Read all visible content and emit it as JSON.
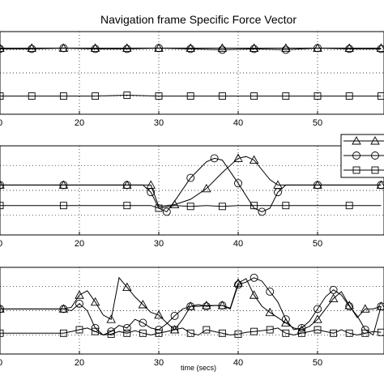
{
  "chart_data": {
    "type": "line",
    "title": "Navigation frame Specific Force Vector",
    "xlabel": "time (secs)",
    "xlim": [
      10,
      58
    ],
    "xticks": [
      20,
      30,
      40,
      50
    ],
    "xtick_labels": [
      "20",
      "30",
      "40",
      "50"
    ],
    "first_tick_fragment": "0",
    "grid": true,
    "legend": {
      "location": "upper-right of second panel",
      "markers": [
        "triangle",
        "circle",
        "square"
      ]
    },
    "panels": [
      {
        "ylim": [
          0,
          1
        ],
        "series": [
          {
            "marker": "triangle",
            "x": [
              10,
              14,
              18,
              22,
              26,
              30,
              34,
              38,
              42,
              46,
              50,
              54,
              58
            ],
            "y": [
              0.8,
              0.8,
              0.8,
              0.8,
              0.8,
              0.8,
              0.8,
              0.8,
              0.8,
              0.8,
              0.8,
              0.8,
              0.8
            ]
          },
          {
            "marker": "circle",
            "x": [
              10,
              14,
              18,
              22,
              26,
              30,
              34,
              38,
              42,
              46,
              50,
              54,
              58
            ],
            "y": [
              0.79,
              0.79,
              0.8,
              0.79,
              0.79,
              0.8,
              0.79,
              0.78,
              0.79,
              0.78,
              0.8,
              0.79,
              0.79
            ]
          },
          {
            "marker": "square",
            "x": [
              10,
              14,
              18,
              22,
              26,
              30,
              34,
              38,
              42,
              46,
              50,
              54,
              58
            ],
            "y": [
              0.22,
              0.22,
              0.22,
              0.22,
              0.23,
              0.22,
              0.22,
              0.22,
              0.22,
              0.22,
              0.22,
              0.22,
              0.22
            ]
          }
        ]
      },
      {
        "ylim": [
          0,
          1
        ],
        "series": [
          {
            "marker": "triangle",
            "x": [
              10,
              14,
              18,
              22,
              26,
              28,
              29,
              30,
              32,
              34,
              36,
              38,
              40,
              41,
              42,
              44,
              45,
              46,
              50,
              54,
              58
            ],
            "y": [
              0.56,
              0.56,
              0.56,
              0.56,
              0.56,
              0.56,
              0.56,
              0.32,
              0.34,
              0.4,
              0.52,
              0.7,
              0.86,
              0.88,
              0.84,
              0.62,
              0.56,
              0.56,
              0.56,
              0.56,
              0.56
            ]
          },
          {
            "marker": "circle",
            "x": [
              10,
              14,
              18,
              22,
              26,
              28,
              29,
              30,
              31,
              32,
              34,
              36,
              37,
              38,
              40,
              42,
              43,
              44,
              45,
              46,
              50,
              54,
              58
            ],
            "y": [
              0.56,
              0.56,
              0.56,
              0.56,
              0.56,
              0.56,
              0.48,
              0.3,
              0.26,
              0.38,
              0.64,
              0.82,
              0.86,
              0.84,
              0.58,
              0.3,
              0.26,
              0.3,
              0.48,
              0.56,
              0.56,
              0.56,
              0.56
            ]
          },
          {
            "marker": "square",
            "x": [
              10,
              14,
              18,
              22,
              26,
              29,
              30,
              32,
              34,
              36,
              38,
              40,
              42,
              44,
              46,
              50,
              54,
              58
            ],
            "y": [
              0.33,
              0.33,
              0.33,
              0.33,
              0.33,
              0.33,
              0.3,
              0.33,
              0.32,
              0.33,
              0.32,
              0.33,
              0.33,
              0.33,
              0.33,
              0.33,
              0.33,
              0.33
            ]
          }
        ]
      },
      {
        "ylim": [
          0,
          1
        ],
        "series": [
          {
            "marker": "triangle",
            "x": [
              10,
              14,
              18,
              19,
              20,
              21,
              22,
              23,
              24,
              25,
              26,
              27,
              28,
              29,
              30,
              31,
              32,
              33,
              34,
              35,
              36,
              37,
              38,
              39,
              40,
              41,
              42,
              43,
              44,
              45,
              46,
              47,
              48,
              49,
              50,
              51,
              52,
              53,
              54,
              55,
              56,
              57,
              58
            ],
            "y": [
              0.52,
              0.52,
              0.52,
              0.54,
              0.68,
              0.73,
              0.6,
              0.45,
              0.4,
              0.88,
              0.77,
              0.66,
              0.57,
              0.48,
              0.45,
              0.36,
              0.28,
              0.4,
              0.55,
              0.55,
              0.56,
              0.56,
              0.56,
              0.53,
              0.82,
              0.87,
              0.68,
              0.55,
              0.48,
              0.42,
              0.36,
              0.3,
              0.28,
              0.32,
              0.4,
              0.52,
              0.64,
              0.72,
              0.56,
              0.42,
              0.52,
              0.52,
              0.55
            ]
          },
          {
            "marker": "circle",
            "x": [
              10,
              14,
              18,
              19,
              20,
              21,
              22,
              23,
              24,
              25,
              26,
              27,
              28,
              29,
              30,
              31,
              32,
              33,
              34,
              35,
              36,
              37,
              38,
              39,
              40,
              41,
              42,
              43,
              44,
              45,
              46,
              47,
              48,
              49,
              50,
              51,
              52,
              53,
              54,
              55,
              56,
              57,
              58
            ],
            "y": [
              0.52,
              0.52,
              0.52,
              0.5,
              0.58,
              0.5,
              0.3,
              0.22,
              0.26,
              0.33,
              0.3,
              0.4,
              0.36,
              0.3,
              0.28,
              0.35,
              0.44,
              0.52,
              0.55,
              0.57,
              0.55,
              0.56,
              0.56,
              0.52,
              0.8,
              0.83,
              0.88,
              0.84,
              0.72,
              0.6,
              0.4,
              0.28,
              0.3,
              0.38,
              0.52,
              0.66,
              0.74,
              0.68,
              0.55,
              0.44,
              0.28,
              0.22,
              0.55
            ]
          },
          {
            "marker": "square",
            "x": [
              10,
              14,
              18,
              19,
              20,
              21,
              22,
              23,
              24,
              25,
              26,
              27,
              28,
              29,
              30,
              31,
              32,
              33,
              34,
              35,
              36,
              37,
              38,
              39,
              40,
              41,
              42,
              43,
              44,
              45,
              46,
              47,
              48,
              49,
              50,
              51,
              52,
              53,
              54,
              55,
              56,
              57,
              58
            ],
            "y": [
              0.24,
              0.24,
              0.24,
              0.26,
              0.28,
              0.3,
              0.26,
              0.22,
              0.23,
              0.26,
              0.24,
              0.27,
              0.24,
              0.22,
              0.24,
              0.26,
              0.28,
              0.3,
              0.24,
              0.22,
              0.28,
              0.26,
              0.24,
              0.22,
              0.23,
              0.25,
              0.26,
              0.27,
              0.28,
              0.3,
              0.24,
              0.22,
              0.24,
              0.26,
              0.28,
              0.26,
              0.24,
              0.28,
              0.24,
              0.22,
              0.24,
              0.26,
              0.25
            ]
          }
        ]
      }
    ]
  }
}
